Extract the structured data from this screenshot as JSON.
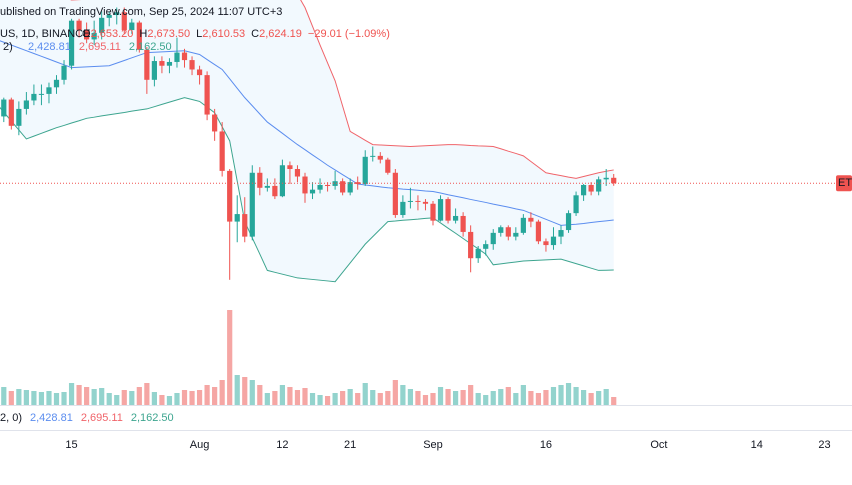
{
  "chart_data": {
    "type": "candlestick",
    "watermark_text": "ublished on TradingView.com, Sep 25, 2024 11:07 UTC+3",
    "symbol_text": "US, 1D, BINANCE",
    "ohlc_labels": [
      {
        "key": "O",
        "text": "2,653.20"
      },
      {
        "key": "H",
        "text": "2,673.50"
      },
      {
        "key": "L",
        "text": "2,610.53"
      },
      {
        "key": "C",
        "text": "2,624.19"
      }
    ],
    "change_text": "−29.01 (−1.09%)",
    "indicator_label": "2)",
    "volume_indicator_label": "2, 0)",
    "price_tag": "ET",
    "up_color": "#26a69a",
    "down_color": "#ef5350",
    "volume_up_color": "#93d3cd",
    "volume_down_color": "#f5a6a4",
    "ylim": [
      1470,
      3600
    ],
    "vlim": [
      0,
      100
    ],
    "categories": [
      null,
      null,
      null,
      null,
      null,
      null,
      null,
      null,
      null,
      null,
      "15",
      null,
      null,
      null,
      null,
      null,
      null,
      null,
      null,
      null,
      null,
      null,
      null,
      null,
      null,
      null,
      null,
      "Aug",
      null,
      null,
      null,
      null,
      null,
      null,
      null,
      null,
      null,
      null,
      "12",
      null,
      null,
      null,
      null,
      null,
      null,
      null,
      null,
      "21",
      null,
      null,
      null,
      null,
      null,
      null,
      null,
      null,
      null,
      null,
      "Sep",
      null,
      null,
      null,
      null,
      null,
      null,
      null,
      null,
      null,
      null,
      null,
      null,
      null,
      null,
      "16",
      null,
      null,
      null,
      null,
      null,
      null,
      null,
      null,
      null,
      null,
      null,
      null,
      null,
      null,
      "Oct",
      null,
      null,
      null,
      null,
      null,
      null,
      null,
      null,
      null,
      null,
      null,
      null,
      "14",
      null,
      null,
      null,
      null,
      null,
      null,
      null,
      null,
      "23",
      null,
      null,
      null
    ],
    "open": [
      3060,
      2980,
      3070,
      2930,
      3020,
      3065,
      3100,
      3100,
      3135,
      3175,
      3250,
      3490,
      3440,
      3390,
      3425,
      3505,
      3520,
      3535,
      3440,
      3480,
      3335,
      3175,
      3275,
      3250,
      3270,
      3320,
      3280,
      3230,
      3200,
      2990,
      2900,
      2690,
      2420,
      2460,
      2340,
      2680,
      2600,
      2610,
      2555,
      2720,
      2700,
      2660,
      2570,
      2590,
      2615,
      2610,
      2635,
      2575,
      2630,
      2620,
      2765,
      2770,
      2750,
      2680,
      2455,
      2525,
      2530,
      2525,
      2515,
      2425,
      2540,
      2425,
      2450,
      2365,
      2225,
      2275,
      2300,
      2360,
      2390,
      2340,
      2360,
      2440,
      2420,
      2315,
      2295,
      2340,
      2375,
      2465,
      2560,
      2615,
      2580,
      2645,
      2653.2,
      null,
      null,
      null,
      null,
      null,
      null,
      null,
      null,
      null,
      null,
      null,
      null,
      null,
      null,
      null,
      null,
      null,
      null,
      null,
      null,
      null,
      null,
      null,
      null,
      null,
      null,
      null,
      null,
      null,
      null,
      null
    ],
    "high": [
      3110,
      3080,
      3080,
      3060,
      3110,
      3150,
      3150,
      3160,
      3200,
      3280,
      3500,
      3500,
      3480,
      3490,
      3540,
      3540,
      3560,
      3560,
      3500,
      3490,
      3350,
      3300,
      3300,
      3290,
      3400,
      3340,
      3300,
      3250,
      3220,
      3020,
      2950,
      2700,
      2560,
      2550,
      2720,
      2710,
      2650,
      2650,
      2750,
      2740,
      2720,
      2680,
      2630,
      2650,
      2630,
      2690,
      2650,
      2650,
      2660,
      2800,
      2820,
      2790,
      2760,
      2700,
      2560,
      2600,
      2560,
      2540,
      2530,
      2560,
      2550,
      2490,
      2470,
      2400,
      2290,
      2320,
      2380,
      2400,
      2400,
      2390,
      2460,
      2470,
      2430,
      2330,
      2390,
      2400,
      2480,
      2580,
      2620,
      2630,
      2660,
      2700,
      2673.5,
      null,
      null,
      null,
      null,
      null,
      null,
      null,
      null,
      null,
      null,
      null,
      null,
      null,
      null,
      null,
      null,
      null,
      null,
      null,
      null,
      null,
      null,
      null,
      null,
      null,
      null,
      null,
      null,
      null,
      null,
      null
    ],
    "low": [
      2810,
      2950,
      2910,
      2880,
      2990,
      3040,
      3040,
      3050,
      3100,
      3150,
      3230,
      3400,
      3370,
      3360,
      3390,
      3460,
      3470,
      3420,
      3420,
      3320,
      3100,
      3140,
      3210,
      3210,
      3240,
      3240,
      3200,
      3150,
      2960,
      2850,
      2660,
      2110,
      2310,
      2310,
      2320,
      2560,
      2580,
      2540,
      2550,
      2620,
      2630,
      2520,
      2540,
      2570,
      2580,
      2590,
      2560,
      2560,
      2590,
      2610,
      2740,
      2730,
      2670,
      2440,
      2440,
      2490,
      2480,
      2480,
      2400,
      2420,
      2410,
      2410,
      2340,
      2150,
      2200,
      2240,
      2270,
      2340,
      2320,
      2320,
      2350,
      2390,
      2300,
      2260,
      2270,
      2300,
      2360,
      2450,
      2530,
      2560,
      2560,
      2610,
      2610.53,
      null,
      null,
      null,
      null,
      null,
      null,
      null,
      null,
      null,
      null,
      null,
      null,
      null,
      null,
      null,
      null,
      null,
      null,
      null,
      null,
      null,
      null,
      null,
      null,
      null,
      null,
      null,
      null,
      null,
      null,
      null
    ],
    "close": [
      2980,
      3070,
      2930,
      3020,
      3065,
      3100,
      3100,
      3135,
      3175,
      3250,
      3490,
      3440,
      3390,
      3425,
      3505,
      3520,
      3535,
      3440,
      3480,
      3335,
      3175,
      3275,
      3250,
      3270,
      3320,
      3280,
      3230,
      3200,
      2990,
      2900,
      2690,
      2420,
      2460,
      2340,
      2680,
      2600,
      2610,
      2555,
      2720,
      2700,
      2660,
      2570,
      2590,
      2615,
      2610,
      2635,
      2575,
      2630,
      2620,
      2765,
      2770,
      2750,
      2680,
      2455,
      2525,
      2530,
      2525,
      2515,
      2425,
      2540,
      2425,
      2450,
      2365,
      2225,
      2275,
      2300,
      2360,
      2390,
      2340,
      2360,
      2440,
      2420,
      2315,
      2295,
      2340,
      2375,
      2465,
      2560,
      2615,
      2580,
      2645,
      2653.2,
      2624.19,
      null,
      null,
      null,
      null,
      null,
      null,
      null,
      null,
      null,
      null,
      null,
      null,
      null,
      null,
      null,
      null,
      null,
      null,
      null,
      null,
      null,
      null,
      null,
      null,
      null,
      null,
      null,
      null,
      null,
      null,
      null
    ],
    "volume": [
      30,
      18,
      14,
      16,
      15,
      14,
      13,
      14,
      12,
      13,
      22,
      20,
      18,
      16,
      17,
      12,
      10,
      15,
      14,
      18,
      22,
      13,
      10,
      9,
      12,
      15,
      14,
      15,
      20,
      18,
      25,
      95,
      30,
      28,
      25,
      20,
      12,
      14,
      20,
      18,
      15,
      17,
      12,
      10,
      9,
      12,
      14,
      16,
      12,
      22,
      15,
      12,
      14,
      25,
      20,
      16,
      14,
      10,
      12,
      18,
      16,
      14,
      15,
      20,
      12,
      10,
      14,
      16,
      18,
      12,
      20,
      14,
      12,
      15,
      18,
      20,
      22,
      18,
      15,
      12,
      14,
      16,
      8,
      null,
      null,
      null,
      null,
      null,
      null,
      null,
      null,
      null,
      null,
      null,
      null,
      null,
      null,
      null,
      null,
      null,
      null,
      null,
      null,
      null,
      null,
      null,
      null,
      null,
      null,
      null,
      null,
      null,
      null,
      null
    ],
    "bands": [
      {
        "color": "#5b8def",
        "value_label": "2,428.81",
        "values": [
          3390,
          3375,
          3360,
          3345,
          3330,
          3315,
          3300,
          3285,
          3270,
          3255,
          3240,
          3242,
          3244,
          3246,
          3248,
          3250,
          3264,
          3278,
          3292,
          3306,
          3320,
          3322,
          3324,
          3326,
          3328,
          3330,
          3320,
          3310,
          3283,
          3256,
          3230,
          3180,
          3130,
          3080,
          3037,
          2993,
          2950,
          2920,
          2890,
          2860,
          2830,
          2803,
          2775,
          2748,
          2720,
          2695,
          2670,
          2645,
          2620,
          2615,
          2610,
          2605,
          2600,
          2597,
          2593,
          2590,
          2587,
          2583,
          2580,
          2572,
          2563,
          2555,
          2547,
          2538,
          2530,
          2522,
          2513,
          2505,
          2497,
          2488,
          2480,
          2464,
          2448,
          2432,
          2416,
          2400,
          2403,
          2406,
          2410,
          2415,
          2420,
          2424,
          2428.81,
          null,
          null,
          null,
          null,
          null,
          null,
          null,
          null,
          null,
          null,
          null,
          null,
          null,
          null,
          null,
          null,
          null,
          null,
          null,
          null,
          null,
          null,
          null,
          null,
          null,
          null,
          null,
          null,
          null,
          null,
          null
        ]
      },
      {
        "color": "#f0646a",
        "value_label": "2,695.11",
        "values": [
          3750,
          3735,
          3720,
          3705,
          3690,
          3675,
          3660,
          3645,
          3630,
          3615,
          3600,
          3602,
          3604,
          3606,
          3608,
          3610,
          3612,
          3614,
          3616,
          3618,
          3620,
          3620,
          3620,
          3620,
          3620,
          3620,
          3620,
          3620,
          3647,
          3673,
          3700,
          3733,
          3767,
          3800,
          3790,
          3780,
          3770,
          3760,
          3750,
          3690,
          3630,
          3560,
          3460,
          3360,
          3265,
          3170,
          3035,
          2900,
          2877,
          2853,
          2830,
          2828,
          2826,
          2824,
          2822,
          2820,
          2822,
          2824,
          2826,
          2828,
          2830,
          2830,
          2828,
          2825,
          2823,
          2822,
          2820,
          2808,
          2795,
          2783,
          2770,
          2740,
          2710,
          2680,
          2672,
          2665,
          2657,
          2650,
          2660,
          2670,
          2680,
          2688,
          2695.11,
          null,
          null,
          null,
          null,
          null,
          null,
          null,
          null,
          null,
          null,
          null,
          null,
          null,
          null,
          null,
          null,
          null,
          null,
          null,
          null,
          null,
          null,
          null,
          null,
          null,
          null,
          null,
          null,
          null,
          null,
          null
        ]
      },
      {
        "color": "#3da58f",
        "value_label": "2,162.50",
        "values": [
          3050,
          3003,
          2955,
          2908,
          2860,
          2875,
          2890,
          2905,
          2920,
          2932,
          2945,
          2957,
          2970,
          2976,
          2983,
          2989,
          2995,
          3001,
          3008,
          3014,
          3020,
          3032,
          3044,
          3056,
          3068,
          3080,
          3070,
          3060,
          3030,
          3000,
          2925,
          2850,
          2635,
          2420,
          2333,
          2247,
          2160,
          2150,
          2140,
          2130,
          2120,
          2116,
          2112,
          2108,
          2104,
          2100,
          2150,
          2200,
          2250,
          2300,
          2340,
          2380,
          2420,
          2423,
          2427,
          2430,
          2433,
          2437,
          2440,
          2413,
          2385,
          2358,
          2330,
          2302,
          2275,
          2247,
          2190,
          2195,
          2200,
          2205,
          2210,
          2212,
          2214,
          2216,
          2218,
          2220,
          2208,
          2196,
          2184,
          2172,
          2160,
          2161,
          2162.5,
          null,
          null,
          null,
          null,
          null,
          null,
          null,
          null,
          null,
          null,
          null,
          null,
          null,
          null,
          null,
          null,
          null,
          null,
          null,
          null,
          null,
          null,
          null,
          null,
          null,
          null,
          null,
          null,
          null,
          null,
          null
        ]
      }
    ]
  }
}
